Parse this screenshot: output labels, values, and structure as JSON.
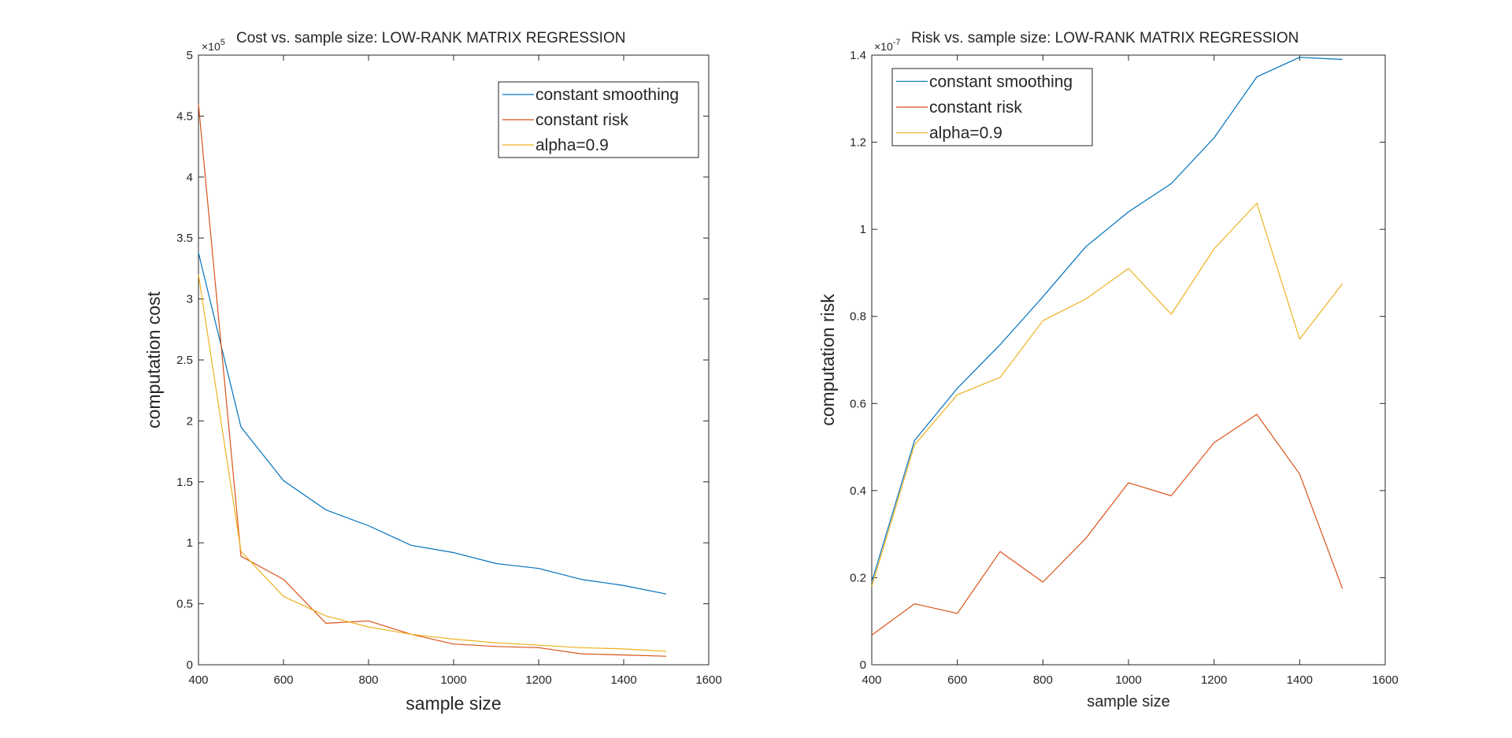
{
  "chart_data": [
    {
      "type": "line",
      "title": "Cost vs. sample size: LOW-RANK MATRIX REGRESSION",
      "xlabel": "sample size",
      "ylabel": "computation cost",
      "xlim": [
        400,
        1600
      ],
      "ylim": [
        0,
        500000
      ],
      "y_exponent": "× 10^5",
      "y_exponent_base": "×10",
      "y_exponent_power": "5",
      "xticks": [
        "400",
        "600",
        "800",
        "1000",
        "1200",
        "1400",
        "1600"
      ],
      "yticks": [
        "0",
        "0.5",
        "1",
        "1.5",
        "2",
        "2.5",
        "3",
        "3.5",
        "4",
        "4.5",
        "5"
      ],
      "grid": false,
      "legend_position": "top-right",
      "x": [
        400,
        500,
        600,
        700,
        800,
        900,
        1000,
        1100,
        1200,
        1300,
        1400,
        1500
      ],
      "series": [
        {
          "name": "constant smoothing",
          "color": "#0072BD",
          "values": [
            338000,
            195000,
            151000,
            127000,
            114000,
            98000,
            92000,
            83000,
            79000,
            70000,
            65000,
            58000
          ]
        },
        {
          "name": "constant risk",
          "color": "#D95319",
          "values": [
            460000,
            89000,
            70000,
            34000,
            36000,
            25000,
            17000,
            15000,
            14000,
            9000,
            8000,
            7000
          ]
        },
        {
          "name": "alpha=0.9",
          "color": "#EDB120",
          "values": [
            320000,
            93000,
            56000,
            40000,
            31000,
            25000,
            21000,
            18000,
            16000,
            14000,
            13000,
            11000
          ]
        }
      ]
    },
    {
      "type": "line",
      "title": "Risk vs. sample size: LOW-RANK MATRIX REGRESSION",
      "xlabel": "sample size",
      "ylabel": "computation risk",
      "xlim": [
        400,
        1600
      ],
      "ylim": [
        0,
        1.4e-07
      ],
      "y_exponent": "× 10^-7",
      "y_exponent_base": "×10",
      "y_exponent_power": "-7",
      "xticks": [
        "400",
        "600",
        "800",
        "1000",
        "1200",
        "1400",
        "1600"
      ],
      "yticks": [
        "0",
        "0.2",
        "0.4",
        "0.6",
        "0.8",
        "1",
        "1.2",
        "1.4"
      ],
      "grid": false,
      "legend_position": "top-left",
      "x": [
        400,
        500,
        600,
        700,
        800,
        900,
        1000,
        1100,
        1200,
        1300,
        1400,
        1500
      ],
      "series": [
        {
          "name": "constant smoothing",
          "color": "#0072BD",
          "values": [
            1.9e-08,
            5.15e-08,
            6.35e-08,
            7.35e-08,
            8.45e-08,
            9.6e-08,
            1.04e-07,
            1.105e-07,
            1.21e-07,
            1.35e-07,
            1.395e-07,
            1.39e-07
          ]
        },
        {
          "name": "constant risk",
          "color": "#D95319",
          "values": [
            6.8e-09,
            1.4e-08,
            1.18e-08,
            2.6e-08,
            1.9e-08,
            2.9e-08,
            4.18e-08,
            3.88e-08,
            5.1e-08,
            5.75e-08,
            4.38e-08,
            1.75e-08
          ]
        },
        {
          "name": "alpha=0.9",
          "color": "#EDB120",
          "values": [
            1.8e-08,
            5.05e-08,
            6.2e-08,
            6.6e-08,
            7.9e-08,
            8.4e-08,
            9.1e-08,
            8.05e-08,
            9.55e-08,
            1.06e-07,
            7.48e-08,
            8.75e-08
          ]
        }
      ]
    }
  ]
}
